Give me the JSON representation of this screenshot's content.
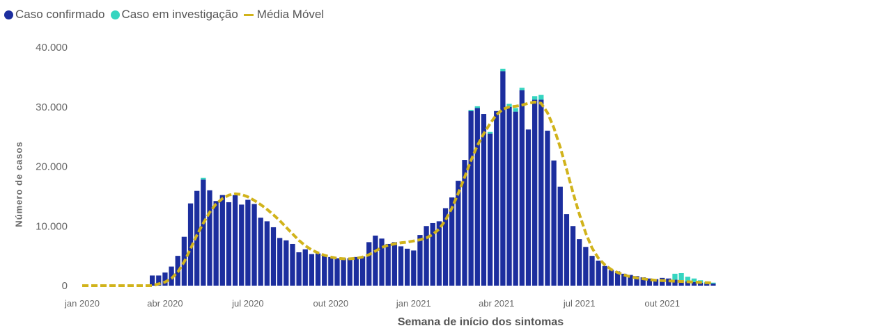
{
  "legend": {
    "confirmed": "Caso confirmado",
    "investigation": "Caso em investigação",
    "moving_avg": "Média Móvel"
  },
  "colors": {
    "confirmed": "#1c2e9e",
    "investigation": "#35d5c0",
    "moving_avg": "#d1b31b"
  },
  "chart_data": {
    "type": "bar",
    "xlabel": "Semana de início dos sintomas",
    "ylabel": "Número de casos",
    "ylim": [
      0,
      40000
    ],
    "y_ticks": [
      {
        "value": 0,
        "label": "0"
      },
      {
        "value": 10000,
        "label": "10.000"
      },
      {
        "value": 20000,
        "label": "20.000"
      },
      {
        "value": 30000,
        "label": "30.000"
      },
      {
        "value": 40000,
        "label": "40.000"
      }
    ],
    "x_ticks": [
      {
        "index": 0,
        "label": "jan 2020"
      },
      {
        "index": 13,
        "label": "abr 2020"
      },
      {
        "index": 26,
        "label": "jul 2020"
      },
      {
        "index": 39,
        "label": "out 2020"
      },
      {
        "index": 52,
        "label": "jan 2021"
      },
      {
        "index": 65,
        "label": "abr 2021"
      },
      {
        "index": 78,
        "label": "jul 2021"
      },
      {
        "index": 91,
        "label": "out 2021"
      }
    ],
    "grid": false,
    "legend_position": "top-left",
    "series": [
      {
        "name": "Caso confirmado",
        "values": [
          0,
          0,
          0,
          0,
          0,
          0,
          0,
          0,
          0,
          0,
          0,
          1700,
          1700,
          2200,
          3200,
          5000,
          8200,
          13800,
          15900,
          17800,
          16000,
          14200,
          15200,
          14000,
          15200,
          13600,
          14400,
          13700,
          11400,
          10800,
          9800,
          8000,
          7600,
          7000,
          5600,
          6100,
          5300,
          5400,
          5100,
          4800,
          4600,
          4600,
          4600,
          4800,
          4900,
          7300,
          8400,
          7900,
          7000,
          7300,
          6600,
          6200,
          5900,
          8500,
          10000,
          10500,
          10800,
          13000,
          14800,
          17600,
          21100,
          29300,
          29800,
          28800,
          25500,
          29300,
          36000,
          30000,
          29200,
          32800,
          26200,
          31200,
          31200,
          26000,
          21000,
          16600,
          12000,
          10000,
          7800,
          6500,
          5000,
          4200,
          3300,
          2600,
          2400,
          2000,
          1800,
          1600,
          1400,
          1200,
          1100,
          1300,
          1200,
          1000,
          800,
          700,
          600,
          500,
          400,
          350
        ],
        "investigation": [
          0,
          0,
          0,
          0,
          0,
          0,
          0,
          0,
          0,
          0,
          0,
          0,
          0,
          0,
          0,
          0,
          0,
          0,
          0,
          300,
          0,
          0,
          0,
          0,
          0,
          0,
          0,
          0,
          0,
          0,
          0,
          0,
          0,
          0,
          0,
          0,
          0,
          0,
          0,
          0,
          0,
          0,
          0,
          0,
          0,
          0,
          0,
          0,
          0,
          0,
          0,
          0,
          0,
          0,
          0,
          0,
          0,
          0,
          0,
          0,
          0,
          200,
          300,
          0,
          300,
          0,
          400,
          500,
          600,
          400,
          0,
          600,
          800,
          0,
          0,
          0,
          0,
          0,
          0,
          0,
          0,
          0,
          0,
          0,
          0,
          0,
          0,
          0,
          0,
          0,
          0,
          0,
          0,
          1000,
          1300,
          800,
          600,
          400,
          200,
          150
        ]
      },
      {
        "name": "Média Móvel",
        "values": [
          0,
          0,
          0,
          0,
          0,
          0,
          0,
          0,
          0,
          0,
          0,
          0,
          300,
          600,
          1200,
          2300,
          4000,
          6200,
          8500,
          10500,
          12300,
          13700,
          14600,
          15200,
          15400,
          15300,
          14900,
          14300,
          13600,
          12800,
          11900,
          10900,
          9800,
          8700,
          7600,
          6700,
          6000,
          5500,
          5100,
          4800,
          4600,
          4500,
          4500,
          4600,
          4800,
          5200,
          5800,
          6400,
          6800,
          7000,
          7200,
          7300,
          7500,
          7700,
          8000,
          8600,
          9500,
          11000,
          13000,
          15500,
          18200,
          21000,
          23500,
          25500,
          27200,
          28700,
          29600,
          30000,
          30100,
          30300,
          30600,
          30800,
          30600,
          29000,
          26500,
          23200,
          19500,
          15600,
          12000,
          8800,
          6300,
          4600,
          3500,
          2700,
          2200,
          1800,
          1500,
          1300,
          1150,
          1000,
          900,
          850,
          800,
          750,
          700,
          650,
          600,
          550,
          500,
          450
        ]
      }
    ]
  }
}
